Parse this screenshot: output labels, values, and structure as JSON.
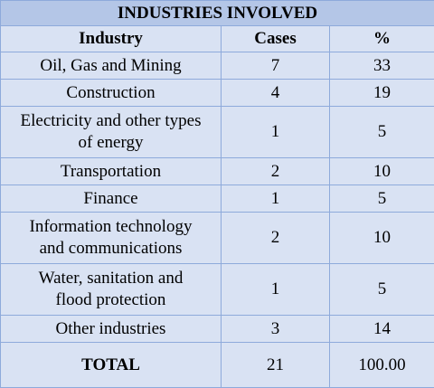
{
  "table": {
    "title": "INDUSTRIES INVOLVED",
    "headers": [
      "Industry",
      "Cases",
      "%"
    ],
    "rows": [
      {
        "industry": "Oil, Gas and Mining",
        "cases": "7",
        "percent": "33"
      },
      {
        "industry": "Construction",
        "cases": "4",
        "percent": "19"
      },
      {
        "industry_line1": "Electricity and other types",
        "industry_line2": "of energy",
        "cases": "1",
        "percent": "5"
      },
      {
        "industry": "Transportation",
        "cases": "2",
        "percent": "10"
      },
      {
        "industry": "Finance",
        "cases": "1",
        "percent": "5"
      },
      {
        "industry_line1": "Information technology",
        "industry_line2": "and communications",
        "cases": "2",
        "percent": "10"
      },
      {
        "industry_line1": "Water, sanitation and",
        "industry_line2": "flood protection",
        "cases": "1",
        "percent": "5"
      },
      {
        "industry": "Other industries",
        "cases": "3",
        "percent": "14"
      }
    ],
    "total": {
      "label": "TOTAL",
      "cases": "21",
      "percent": "100.00"
    }
  },
  "colors": {
    "title_bg": "#b4c6e7",
    "body_bg": "#d9e2f3",
    "border": "#8eaadb"
  }
}
